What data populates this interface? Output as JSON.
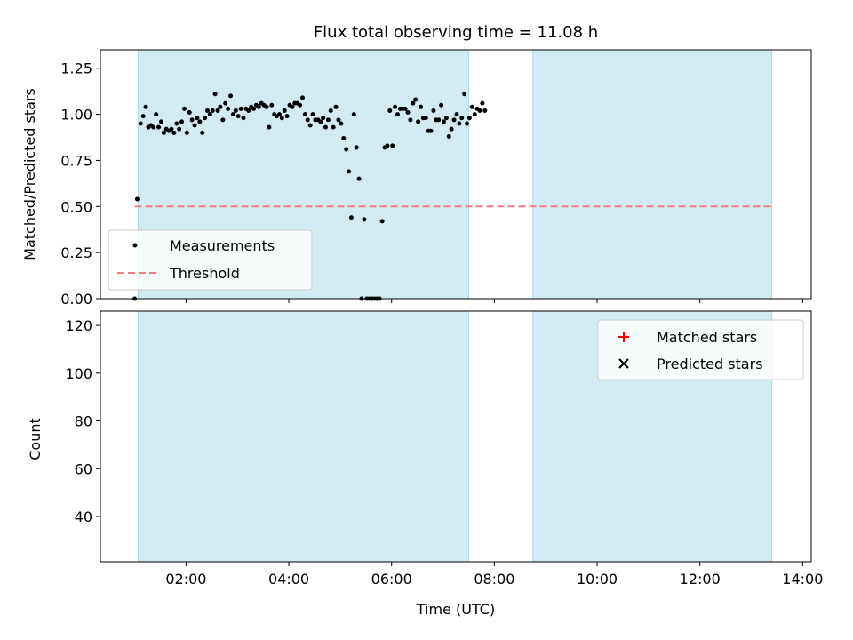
{
  "chart_data": [
    {
      "type": "scatter",
      "title": "Flux total observing time = 11.08 h",
      "xlabel": "",
      "ylabel": "Matched/Predicted stars",
      "xlim": [
        "00:20",
        "14:10"
      ],
      "ylim": [
        0,
        1.35
      ],
      "yticks": [
        "0.00",
        "0.25",
        "0.50",
        "0.75",
        "1.00",
        "1.25"
      ],
      "grid": false,
      "legend_position": "lower-left",
      "shaded_intervals": [
        [
          "01:04",
          "07:30"
        ],
        [
          "08:45",
          "13:24"
        ]
      ],
      "shade_color": "#add8e6",
      "threshold": {
        "name": "Threshold",
        "value": 0.5,
        "x_range": [
          "01:00",
          "13:24"
        ],
        "color": "#f08080",
        "style": "dashed"
      },
      "series": [
        {
          "name": "Measurements",
          "marker": "dot",
          "color": "#000000",
          "points": [
            [
              "01:00",
              0.0
            ],
            [
              "01:03",
              0.54
            ],
            [
              "01:07",
              0.95
            ],
            [
              "01:10",
              0.99
            ],
            [
              "01:13",
              1.04
            ],
            [
              "01:16",
              0.93
            ],
            [
              "01:19",
              0.94
            ],
            [
              "01:22",
              0.93
            ],
            [
              "01:25",
              1.0
            ],
            [
              "01:28",
              0.93
            ],
            [
              "01:31",
              0.96
            ],
            [
              "01:34",
              0.9
            ],
            [
              "01:37",
              0.92
            ],
            [
              "01:40",
              0.91
            ],
            [
              "01:43",
              0.92
            ],
            [
              "01:46",
              0.9
            ],
            [
              "01:49",
              0.95
            ],
            [
              "01:52",
              0.92
            ],
            [
              "01:55",
              0.96
            ],
            [
              "01:58",
              1.03
            ],
            [
              "02:01",
              0.9
            ],
            [
              "02:04",
              1.01
            ],
            [
              "02:07",
              0.97
            ],
            [
              "02:10",
              0.94
            ],
            [
              "02:13",
              0.98
            ],
            [
              "02:16",
              0.96
            ],
            [
              "02:19",
              0.9
            ],
            [
              "02:22",
              0.98
            ],
            [
              "02:25",
              1.02
            ],
            [
              "02:28",
              1.0
            ],
            [
              "02:31",
              1.02
            ],
            [
              "02:34",
              1.11
            ],
            [
              "02:37",
              1.02
            ],
            [
              "02:40",
              1.04
            ],
            [
              "02:43",
              0.97
            ],
            [
              "02:46",
              1.06
            ],
            [
              "02:49",
              1.03
            ],
            [
              "02:52",
              1.1
            ],
            [
              "02:55",
              1.0
            ],
            [
              "02:58",
              1.02
            ],
            [
              "03:01",
              0.99
            ],
            [
              "03:04",
              1.03
            ],
            [
              "03:07",
              0.98
            ],
            [
              "03:10",
              1.03
            ],
            [
              "03:13",
              1.02
            ],
            [
              "03:16",
              1.04
            ],
            [
              "03:19",
              1.03
            ],
            [
              "03:22",
              1.05
            ],
            [
              "03:25",
              1.04
            ],
            [
              "03:28",
              1.06
            ],
            [
              "03:31",
              1.05
            ],
            [
              "03:34",
              1.04
            ],
            [
              "03:37",
              0.93
            ],
            [
              "03:40",
              1.05
            ],
            [
              "03:43",
              1.0
            ],
            [
              "03:46",
              0.99
            ],
            [
              "03:49",
              1.0
            ],
            [
              "03:52",
              0.98
            ],
            [
              "03:55",
              1.02
            ],
            [
              "03:58",
              0.99
            ],
            [
              "04:01",
              1.05
            ],
            [
              "04:04",
              1.04
            ],
            [
              "04:07",
              1.06
            ],
            [
              "04:10",
              1.06
            ],
            [
              "04:13",
              1.05
            ],
            [
              "04:16",
              1.09
            ],
            [
              "04:19",
              1.0
            ],
            [
              "04:22",
              0.97
            ],
            [
              "04:25",
              0.94
            ],
            [
              "04:28",
              1.0
            ],
            [
              "04:31",
              0.97
            ],
            [
              "04:34",
              0.97
            ],
            [
              "04:37",
              0.96
            ],
            [
              "04:40",
              0.98
            ],
            [
              "04:43",
              0.93
            ],
            [
              "04:46",
              0.97
            ],
            [
              "04:49",
              1.02
            ],
            [
              "04:52",
              0.93
            ],
            [
              "04:55",
              1.04
            ],
            [
              "04:58",
              0.97
            ],
            [
              "05:01",
              0.95
            ],
            [
              "05:04",
              0.87
            ],
            [
              "05:07",
              0.81
            ],
            [
              "05:10",
              0.69
            ],
            [
              "05:13",
              0.44
            ],
            [
              "05:16",
              1.0
            ],
            [
              "05:19",
              0.82
            ],
            [
              "05:22",
              0.65
            ],
            [
              "05:25",
              0.0
            ],
            [
              "05:28",
              0.43
            ],
            [
              "05:31",
              0.0
            ],
            [
              "05:34",
              0.0
            ],
            [
              "05:37",
              0.0
            ],
            [
              "05:40",
              0.0
            ],
            [
              "05:43",
              0.0
            ],
            [
              "05:46",
              0.0
            ],
            [
              "05:49",
              0.42
            ],
            [
              "05:52",
              0.82
            ],
            [
              "05:55",
              0.83
            ],
            [
              "05:58",
              1.02
            ],
            [
              "06:01",
              0.83
            ],
            [
              "06:04",
              1.04
            ],
            [
              "06:07",
              1.0
            ],
            [
              "06:10",
              1.03
            ],
            [
              "06:13",
              1.03
            ],
            [
              "06:16",
              1.03
            ],
            [
              "06:19",
              1.01
            ],
            [
              "06:22",
              0.97
            ],
            [
              "06:25",
              1.06
            ],
            [
              "06:28",
              1.08
            ],
            [
              "06:31",
              0.96
            ],
            [
              "06:34",
              1.04
            ],
            [
              "06:37",
              0.98
            ],
            [
              "06:40",
              0.98
            ],
            [
              "06:43",
              0.91
            ],
            [
              "06:46",
              0.91
            ],
            [
              "06:49",
              1.02
            ],
            [
              "06:52",
              0.97
            ],
            [
              "06:55",
              0.97
            ],
            [
              "06:58",
              1.05
            ],
            [
              "07:01",
              0.96
            ],
            [
              "07:04",
              0.98
            ],
            [
              "07:07",
              0.88
            ],
            [
              "07:10",
              0.92
            ],
            [
              "07:13",
              0.97
            ],
            [
              "07:16",
              1.0
            ],
            [
              "07:19",
              0.95
            ],
            [
              "07:22",
              0.98
            ],
            [
              "07:25",
              1.11
            ],
            [
              "07:28",
              0.95
            ],
            [
              "07:31",
              0.98
            ],
            [
              "07:34",
              1.04
            ],
            [
              "07:37",
              1.0
            ],
            [
              "07:40",
              1.03
            ],
            [
              "07:43",
              1.02
            ],
            [
              "07:46",
              1.06
            ],
            [
              "07:49",
              1.02
            ]
          ]
        }
      ]
    },
    {
      "type": "scatter",
      "title": "",
      "xlabel": "Time (UTC)",
      "ylabel": "Count",
      "xlim": [
        "00:20",
        "14:10"
      ],
      "ylim": [
        21,
        126
      ],
      "xticks": [
        "02:00",
        "04:00",
        "06:00",
        "08:00",
        "10:00",
        "12:00",
        "14:00"
      ],
      "yticks": [
        "40",
        "60",
        "80",
        "100",
        "120"
      ],
      "grid": false,
      "legend_position": "top-right",
      "shaded_intervals": [
        [
          "01:04",
          "07:30"
        ],
        [
          "08:45",
          "13:24"
        ]
      ],
      "shade_color": "#add8e6",
      "series": [
        {
          "name": "Matched stars",
          "marker": "plus",
          "color": "#ff0000",
          "points": []
        },
        {
          "name": "Predicted stars",
          "marker": "x",
          "color": "#000000",
          "points": []
        }
      ]
    }
  ]
}
